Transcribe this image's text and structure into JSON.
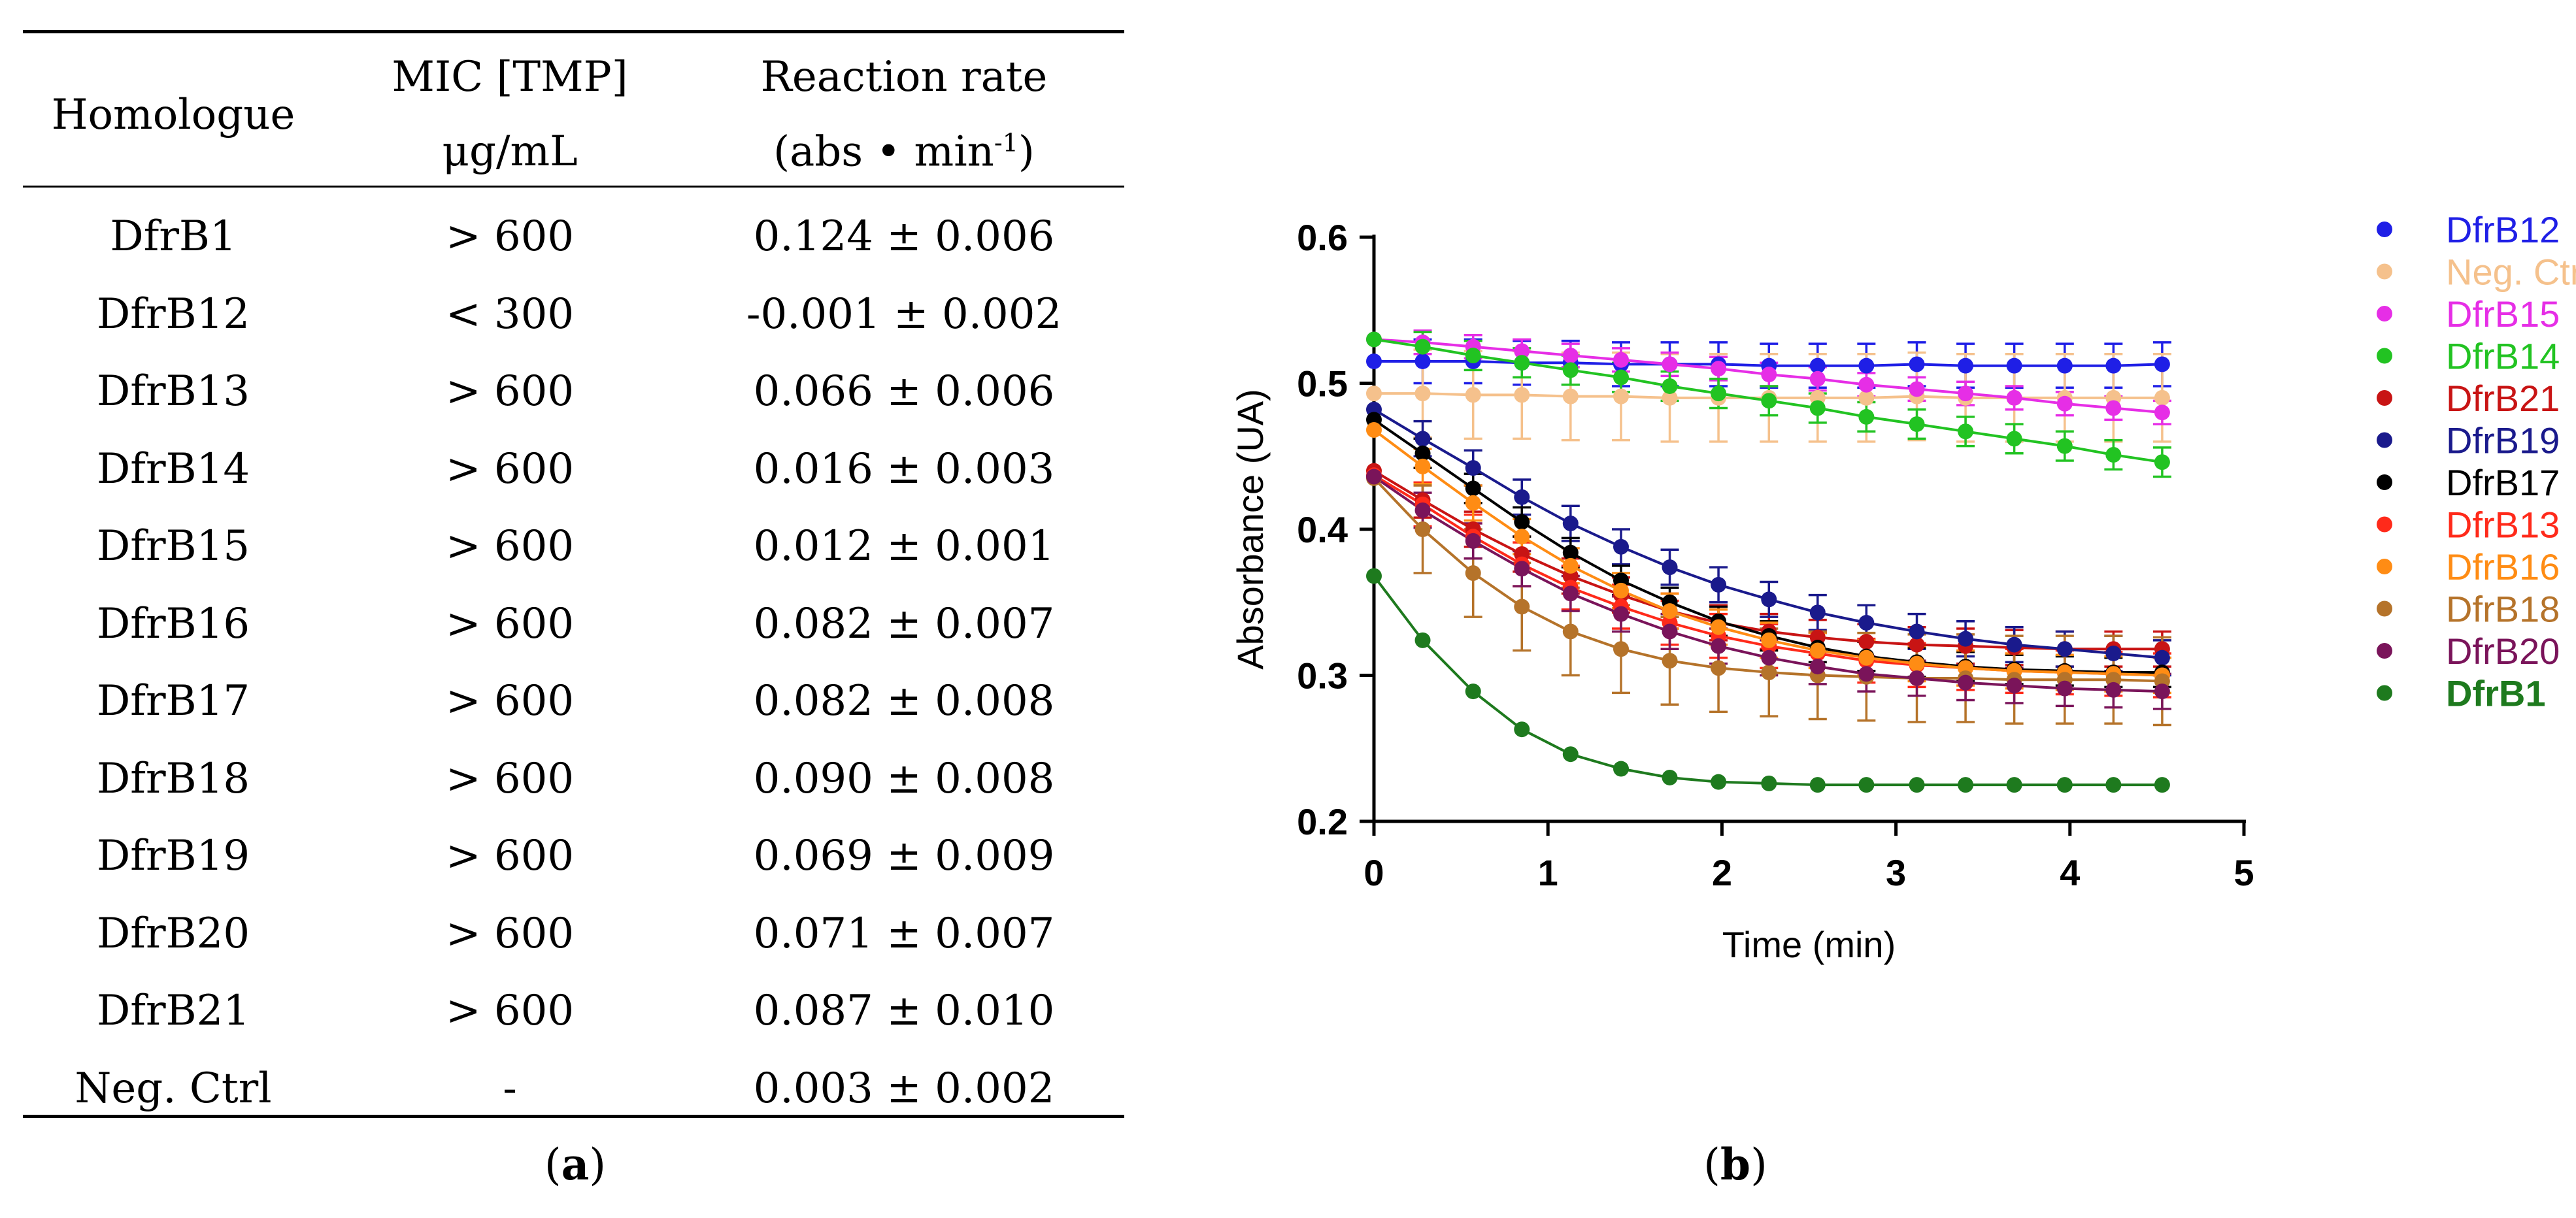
{
  "table": {
    "headers": {
      "homologue": "Homologue",
      "mic_line1": "MIC [TMP]",
      "mic_line2": "μg/mL",
      "rate_line1": "Reaction rate",
      "rate_line2_pre": "(abs • min",
      "rate_line2_sup": "-1",
      "rate_line2_post": ")"
    },
    "rows": [
      {
        "homologue": "DfrB1",
        "mic": "> 600",
        "rate": "0.124 ± 0.006"
      },
      {
        "homologue": "DfrB12",
        "mic": "< 300",
        "rate": "-0.001 ± 0.002"
      },
      {
        "homologue": "DfrB13",
        "mic": "> 600",
        "rate": "0.066 ± 0.006"
      },
      {
        "homologue": "DfrB14",
        "mic": "> 600",
        "rate": "0.016 ± 0.003"
      },
      {
        "homologue": "DfrB15",
        "mic": "> 600",
        "rate": "0.012 ± 0.001"
      },
      {
        "homologue": "DfrB16",
        "mic": "> 600",
        "rate": "0.082 ± 0.007"
      },
      {
        "homologue": "DfrB17",
        "mic": "> 600",
        "rate": "0.082 ± 0.008"
      },
      {
        "homologue": "DfrB18",
        "mic": "> 600",
        "rate": "0.090 ± 0.008"
      },
      {
        "homologue": "DfrB19",
        "mic": "> 600",
        "rate": "0.069 ± 0.009"
      },
      {
        "homologue": "DfrB20",
        "mic": "> 600",
        "rate": "0.071 ± 0.007"
      },
      {
        "homologue": "DfrB21",
        "mic": "> 600",
        "rate": "0.087 ± 0.010"
      },
      {
        "homologue": "Neg. Ctrl",
        "mic": "-",
        "rate": "0.003 ± 0.002"
      }
    ]
  },
  "labels": {
    "a_open": "(",
    "a_letter": "a",
    "a_close": ")",
    "b_open": "(",
    "b_letter": "b",
    "b_close": ")"
  },
  "chart_data": {
    "type": "scatter",
    "xlabel": "Time (min)",
    "ylabel": "Absorbance (UA)",
    "xlim": [
      0,
      5
    ],
    "ylim": [
      0.2,
      0.6
    ],
    "xticks": [
      0,
      1,
      2,
      3,
      4,
      5
    ],
    "yticks": [
      0.2,
      0.3,
      0.4,
      0.5,
      0.6
    ],
    "x": [
      0,
      0.28,
      0.57,
      0.85,
      1.13,
      1.42,
      1.7,
      1.98,
      2.27,
      2.55,
      2.83,
      3.12,
      3.4,
      3.68,
      3.97,
      4.25,
      4.53
    ],
    "series": [
      {
        "name": "DfrB12",
        "color": "#1f1fe6",
        "bold": false,
        "err": 0.015,
        "values": [
          0.515,
          0.515,
          0.515,
          0.514,
          0.514,
          0.513,
          0.513,
          0.513,
          0.512,
          0.512,
          0.512,
          0.513,
          0.512,
          0.512,
          0.512,
          0.512,
          0.513
        ]
      },
      {
        "name": "Neg. Ctrl",
        "color": "#f5c18c",
        "bold": false,
        "err": 0.03,
        "values": [
          0.493,
          0.493,
          0.492,
          0.492,
          0.491,
          0.491,
          0.49,
          0.49,
          0.49,
          0.49,
          0.49,
          0.491,
          0.49,
          0.49,
          0.49,
          0.49,
          0.49
        ]
      },
      {
        "name": "DfrB15",
        "color": "#e62ee6",
        "bold": false,
        "err": 0.008,
        "values": [
          0.53,
          0.528,
          0.525,
          0.522,
          0.519,
          0.516,
          0.513,
          0.51,
          0.506,
          0.503,
          0.499,
          0.496,
          0.493,
          0.49,
          0.486,
          0.483,
          0.48
        ]
      },
      {
        "name": "DfrB14",
        "color": "#22c322",
        "bold": false,
        "err": 0.01,
        "values": [
          0.53,
          0.525,
          0.519,
          0.514,
          0.509,
          0.504,
          0.498,
          0.493,
          0.488,
          0.483,
          0.477,
          0.472,
          0.467,
          0.462,
          0.457,
          0.451,
          0.446
        ]
      },
      {
        "name": "DfrB21",
        "color": "#c81414",
        "bold": false,
        "err": 0.012,
        "values": [
          0.44,
          0.42,
          0.4,
          0.383,
          0.368,
          0.355,
          0.344,
          0.336,
          0.33,
          0.326,
          0.323,
          0.321,
          0.32,
          0.319,
          0.318,
          0.318,
          0.318
        ]
      },
      {
        "name": "DfrB19",
        "color": "#1a1a8c",
        "bold": false,
        "err": 0.012,
        "values": [
          0.482,
          0.462,
          0.442,
          0.422,
          0.404,
          0.388,
          0.374,
          0.362,
          0.352,
          0.343,
          0.336,
          0.33,
          0.325,
          0.321,
          0.318,
          0.315,
          0.312
        ]
      },
      {
        "name": "DfrB17",
        "color": "#000000",
        "bold": false,
        "err": 0.01,
        "values": [
          0.475,
          0.452,
          0.428,
          0.405,
          0.384,
          0.365,
          0.35,
          0.337,
          0.327,
          0.319,
          0.313,
          0.309,
          0.306,
          0.304,
          0.303,
          0.302,
          0.302
        ]
      },
      {
        "name": "DfrB13",
        "color": "#ff2a1a",
        "bold": false,
        "err": 0.015,
        "values": [
          0.437,
          0.417,
          0.395,
          0.376,
          0.36,
          0.347,
          0.336,
          0.327,
          0.32,
          0.315,
          0.31,
          0.307,
          0.305,
          0.303,
          0.302,
          0.301,
          0.3
        ]
      },
      {
        "name": "DfrB16",
        "color": "#ff8c14",
        "bold": false,
        "err": 0.012,
        "values": [
          0.468,
          0.443,
          0.418,
          0.395,
          0.375,
          0.358,
          0.344,
          0.333,
          0.324,
          0.317,
          0.312,
          0.308,
          0.305,
          0.303,
          0.302,
          0.301,
          0.3
        ]
      },
      {
        "name": "DfrB18",
        "color": "#b5732a",
        "bold": false,
        "err": 0.03,
        "values": [
          0.435,
          0.4,
          0.37,
          0.347,
          0.33,
          0.318,
          0.31,
          0.305,
          0.302,
          0.3,
          0.299,
          0.298,
          0.298,
          0.297,
          0.297,
          0.297,
          0.296
        ]
      },
      {
        "name": "DfrB20",
        "color": "#7a145a",
        "bold": false,
        "err": 0.012,
        "values": [
          0.436,
          0.413,
          0.392,
          0.373,
          0.356,
          0.342,
          0.33,
          0.32,
          0.312,
          0.306,
          0.301,
          0.298,
          0.295,
          0.293,
          0.291,
          0.29,
          0.289
        ]
      },
      {
        "name": "DfrB1",
        "color": "#1e7a1e",
        "bold": true,
        "err": 0.0,
        "values": [
          0.368,
          0.324,
          0.289,
          0.263,
          0.246,
          0.236,
          0.23,
          0.227,
          0.226,
          0.225,
          0.225,
          0.225,
          0.225,
          0.225,
          0.225,
          0.225,
          0.225
        ]
      }
    ]
  }
}
